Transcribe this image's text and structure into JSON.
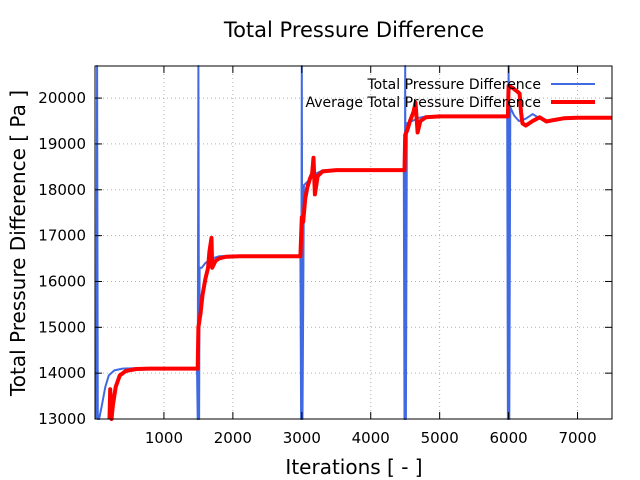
{
  "chart_data": {
    "type": "line",
    "title": "Total Pressure Difference",
    "xlabel": "Iterations [ - ]",
    "ylabel": "Total Pressure Difference [ Pa ]",
    "xlim": [
      0,
      7500
    ],
    "ylim": [
      13000,
      20700
    ],
    "xticks": [
      1000,
      2000,
      3000,
      4000,
      5000,
      6000,
      7000
    ],
    "yticks": [
      13000,
      14000,
      15000,
      16000,
      17000,
      18000,
      19000,
      20000
    ],
    "grid": true,
    "legend_position": "top-right",
    "series": [
      {
        "name": "Total Pressure Difference",
        "color": "#4169e1",
        "style": "thin",
        "points": [
          [
            20,
            13000
          ],
          [
            30,
            20700
          ],
          [
            40,
            13000
          ],
          [
            60,
            13000
          ],
          [
            100,
            13300
          ],
          [
            150,
            13700
          ],
          [
            200,
            13950
          ],
          [
            280,
            14060
          ],
          [
            400,
            14100
          ],
          [
            600,
            14110
          ],
          [
            800,
            14110
          ],
          [
            1000,
            14110
          ],
          [
            1200,
            14110
          ],
          [
            1480,
            14110
          ],
          [
            1490,
            13000
          ],
          [
            1500,
            20700
          ],
          [
            1510,
            13000
          ],
          [
            1518,
            16300
          ],
          [
            1550,
            16300
          ],
          [
            1600,
            16400
          ],
          [
            1700,
            16500
          ],
          [
            1800,
            16550
          ],
          [
            2000,
            16560
          ],
          [
            2300,
            16560
          ],
          [
            2700,
            16560
          ],
          [
            2980,
            16560
          ],
          [
            2990,
            13000
          ],
          [
            3000,
            20700
          ],
          [
            3010,
            13000
          ],
          [
            3030,
            18100
          ],
          [
            3100,
            18200
          ],
          [
            3200,
            18350
          ],
          [
            3300,
            18420
          ],
          [
            3500,
            18440
          ],
          [
            3800,
            18440
          ],
          [
            4200,
            18440
          ],
          [
            4480,
            18440
          ],
          [
            4490,
            13000
          ],
          [
            4500,
            20700
          ],
          [
            4510,
            13000
          ],
          [
            4525,
            19450
          ],
          [
            4600,
            19500
          ],
          [
            4700,
            19570
          ],
          [
            4800,
            19600
          ],
          [
            5000,
            19610
          ],
          [
            5300,
            19610
          ],
          [
            5600,
            19610
          ],
          [
            5980,
            19610
          ],
          [
            5990,
            13000
          ],
          [
            6000,
            20700
          ],
          [
            6010,
            13000
          ],
          [
            6025,
            19800
          ],
          [
            6080,
            19620
          ],
          [
            6150,
            19500
          ],
          [
            6250,
            19550
          ],
          [
            6350,
            19650
          ],
          [
            6450,
            19560
          ],
          [
            6550,
            19480
          ],
          [
            6700,
            19520
          ],
          [
            6850,
            19570
          ],
          [
            7000,
            19580
          ],
          [
            7500,
            19580
          ]
        ]
      },
      {
        "name": "Average Total Pressure Difference",
        "color": "#ff0000",
        "style": "thick",
        "points": [
          [
            210,
            13000
          ],
          [
            220,
            13650
          ],
          [
            240,
            12900
          ],
          [
            260,
            13300
          ],
          [
            300,
            13700
          ],
          [
            360,
            13950
          ],
          [
            450,
            14050
          ],
          [
            600,
            14090
          ],
          [
            800,
            14100
          ],
          [
            1200,
            14100
          ],
          [
            1490,
            14100
          ],
          [
            1500,
            15000
          ],
          [
            1530,
            15300
          ],
          [
            1560,
            15700
          ],
          [
            1600,
            16050
          ],
          [
            1640,
            16300
          ],
          [
            1660,
            16650
          ],
          [
            1690,
            16950
          ],
          [
            1700,
            16300
          ],
          [
            1750,
            16450
          ],
          [
            1800,
            16500
          ],
          [
            1900,
            16540
          ],
          [
            2100,
            16550
          ],
          [
            2500,
            16550
          ],
          [
            2980,
            16550
          ],
          [
            3000,
            17400
          ],
          [
            3020,
            17300
          ],
          [
            3050,
            17800
          ],
          [
            3080,
            18050
          ],
          [
            3120,
            18250
          ],
          [
            3150,
            18350
          ],
          [
            3170,
            18700
          ],
          [
            3190,
            17900
          ],
          [
            3230,
            18300
          ],
          [
            3300,
            18400
          ],
          [
            3500,
            18430
          ],
          [
            3800,
            18430
          ],
          [
            4200,
            18430
          ],
          [
            4490,
            18430
          ],
          [
            4500,
            19200
          ],
          [
            4530,
            19300
          ],
          [
            4570,
            19500
          ],
          [
            4620,
            19700
          ],
          [
            4650,
            19900
          ],
          [
            4680,
            19250
          ],
          [
            4720,
            19500
          ],
          [
            4800,
            19580
          ],
          [
            5000,
            19600
          ],
          [
            5300,
            19600
          ],
          [
            5700,
            19600
          ],
          [
            5990,
            19600
          ],
          [
            6000,
            20270
          ],
          [
            6060,
            20220
          ],
          [
            6120,
            20150
          ],
          [
            6160,
            20100
          ],
          [
            6180,
            19700
          ],
          [
            6200,
            19450
          ],
          [
            6250,
            19400
          ],
          [
            6350,
            19500
          ],
          [
            6450,
            19580
          ],
          [
            6550,
            19490
          ],
          [
            6650,
            19520
          ],
          [
            6800,
            19560
          ],
          [
            7000,
            19570
          ],
          [
            7500,
            19570
          ]
        ]
      }
    ]
  }
}
